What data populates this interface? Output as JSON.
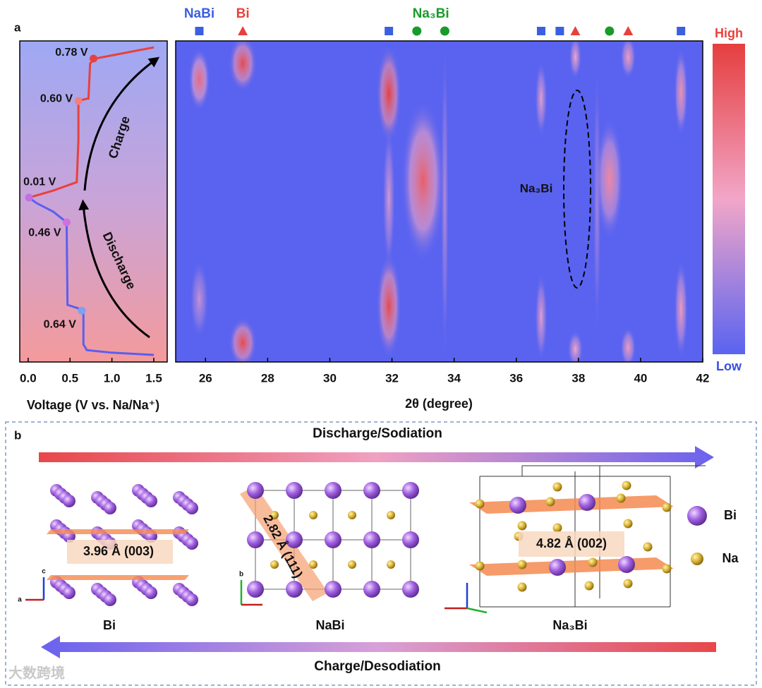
{
  "chart_data": [
    {
      "type": "line",
      "panel": "a",
      "xlabel": "Voltage (V vs. Na/Na⁺)",
      "xlim": [
        -0.1,
        1.66
      ],
      "xticks": [
        {
          "value": 0,
          "label": "0.0"
        },
        0.5,
        {
          "value": 1,
          "label": "1.0"
        },
        1.5
      ],
      "ylim": [
        0,
        100
      ],
      "series": [
        {
          "name": "Discharge",
          "color": "#5b5ef0",
          "x": [
            1.5,
            1.0,
            0.7,
            0.66,
            0.66,
            0.6,
            0.47,
            0.46,
            0.46,
            0.3,
            0.1,
            0.01
          ],
          "y": [
            2.2,
            2.9,
            3.7,
            5.5,
            16.0,
            16.7,
            17.8,
            42.4,
            43.5,
            46.8,
            49.5,
            51.2
          ]
        },
        {
          "name": "Charge",
          "color": "#e8413c",
          "x": [
            0.01,
            0.3,
            0.58,
            0.6,
            0.6,
            0.7,
            0.72,
            0.74,
            0.8,
            1.5
          ],
          "y": [
            51.2,
            53.4,
            56.0,
            68.8,
            81.3,
            82.0,
            82.0,
            93.0,
            94.5,
            98.0
          ]
        }
      ],
      "markers": {
        "x": [
          0.78,
          0.6,
          0.01,
          0.46,
          0.64
        ],
        "y": [
          94.5,
          81.3,
          51.2,
          43.5,
          16.0
        ],
        "value_labels": [
          "0.78 V",
          "0.60 V",
          "0.01 V",
          "0.46 V",
          "0.64 V"
        ],
        "colors": [
          "#e8413c",
          "#f08080",
          "#c070e0",
          "#d070e0",
          "#80a0f0"
        ]
      },
      "annotations": [
        {
          "text": "Charge"
        },
        {
          "text": "Discharge"
        }
      ]
    },
    {
      "type": "heatmap",
      "xlabel": "2θ (degree)",
      "xlim": [
        25.04,
        42
      ],
      "xticks": [
        26,
        28,
        30,
        32,
        34,
        36,
        38,
        40,
        42
      ],
      "ylim": [
        0,
        100
      ],
      "colorbar": {
        "high": "High",
        "low": "Low",
        "colors": [
          "#5a63f0",
          "#f2a6c8",
          "#e53e3e"
        ]
      },
      "reflections": [
        {
          "name": "NaBi",
          "color": "#3a5fe0",
          "shape": "square",
          "x": [
            25.8,
            31.9,
            36.8,
            37.4,
            41.3
          ]
        },
        {
          "name": "Bi",
          "color": "#e8413c",
          "shape": "triangle",
          "x": [
            27.2,
            37.9,
            39.6
          ]
        },
        {
          "name": "Na₃Bi",
          "color": "#1a9a2a",
          "shape": "circle",
          "x": [
            32.8,
            33.7,
            39.0
          ]
        }
      ],
      "streaks": [
        {
          "x": 25.8,
          "y": [
            80,
            96
          ],
          "intensity": 0.8,
          "width": 0.35
        },
        {
          "x": 25.8,
          "y": [
            9,
            30
          ],
          "intensity": 0.35,
          "width": 0.3
        },
        {
          "x": 27.2,
          "y": [
            86,
            100
          ],
          "intensity": 0.95,
          "width": 0.45
        },
        {
          "x": 27.2,
          "y": [
            0,
            12
          ],
          "intensity": 0.95,
          "width": 0.45
        },
        {
          "x": 31.9,
          "y": [
            70,
            97
          ],
          "intensity": 1.0,
          "width": 0.4
        },
        {
          "x": 31.9,
          "y": [
            3,
            32
          ],
          "intensity": 0.95,
          "width": 0.4
        },
        {
          "x": 31.9,
          "y": [
            30,
            72
          ],
          "intensity": 0.4,
          "width": 0.2
        },
        {
          "x": 33.0,
          "y": [
            33,
            80
          ],
          "intensity": 0.85,
          "width": 0.7
        },
        {
          "x": 33.7,
          "y": [
            2,
            98
          ],
          "intensity": 0.3,
          "width": 0.12
        },
        {
          "x": 36.8,
          "y": [
            72,
            92
          ],
          "intensity": 0.45,
          "width": 0.2
        },
        {
          "x": 36.8,
          "y": [
            2,
            26
          ],
          "intensity": 0.45,
          "width": 0.2
        },
        {
          "x": 37.9,
          "y": [
            90,
            100
          ],
          "intensity": 0.5,
          "width": 0.2
        },
        {
          "x": 37.9,
          "y": [
            0,
            8
          ],
          "intensity": 0.5,
          "width": 0.25
        },
        {
          "x": 38.6,
          "y": [
            10,
            90
          ],
          "intensity": 0.25,
          "width": 0.12
        },
        {
          "x": 39.0,
          "y": [
            40,
            74
          ],
          "intensity": 0.65,
          "width": 0.45
        },
        {
          "x": 39.6,
          "y": [
            90,
            100
          ],
          "intensity": 0.55,
          "width": 0.25
        },
        {
          "x": 39.6,
          "y": [
            0,
            9
          ],
          "intensity": 0.55,
          "width": 0.25
        },
        {
          "x": 41.3,
          "y": [
            72,
            96
          ],
          "intensity": 0.6,
          "width": 0.22
        },
        {
          "x": 41.3,
          "y": [
            3,
            30
          ],
          "intensity": 0.55,
          "width": 0.22
        }
      ],
      "annotations": [
        {
          "text": "Na₃Bi"
        }
      ]
    }
  ],
  "panel_b": {
    "label": "b",
    "top_arrow": "Discharge/Sodiation",
    "bottom_arrow": "Charge/Desodiation",
    "structures": [
      {
        "name": "Bi",
        "spacing": "3.96 Å (003)"
      },
      {
        "name": "NaBi",
        "spacing": "2.82 Å (111)"
      },
      {
        "name": "Na₃Bi",
        "spacing": "4.82 Å (002)"
      }
    ],
    "legend": [
      "Bi",
      "Na"
    ],
    "axes": [
      "c",
      "a",
      "b"
    ]
  },
  "watermark": "大数跨境"
}
